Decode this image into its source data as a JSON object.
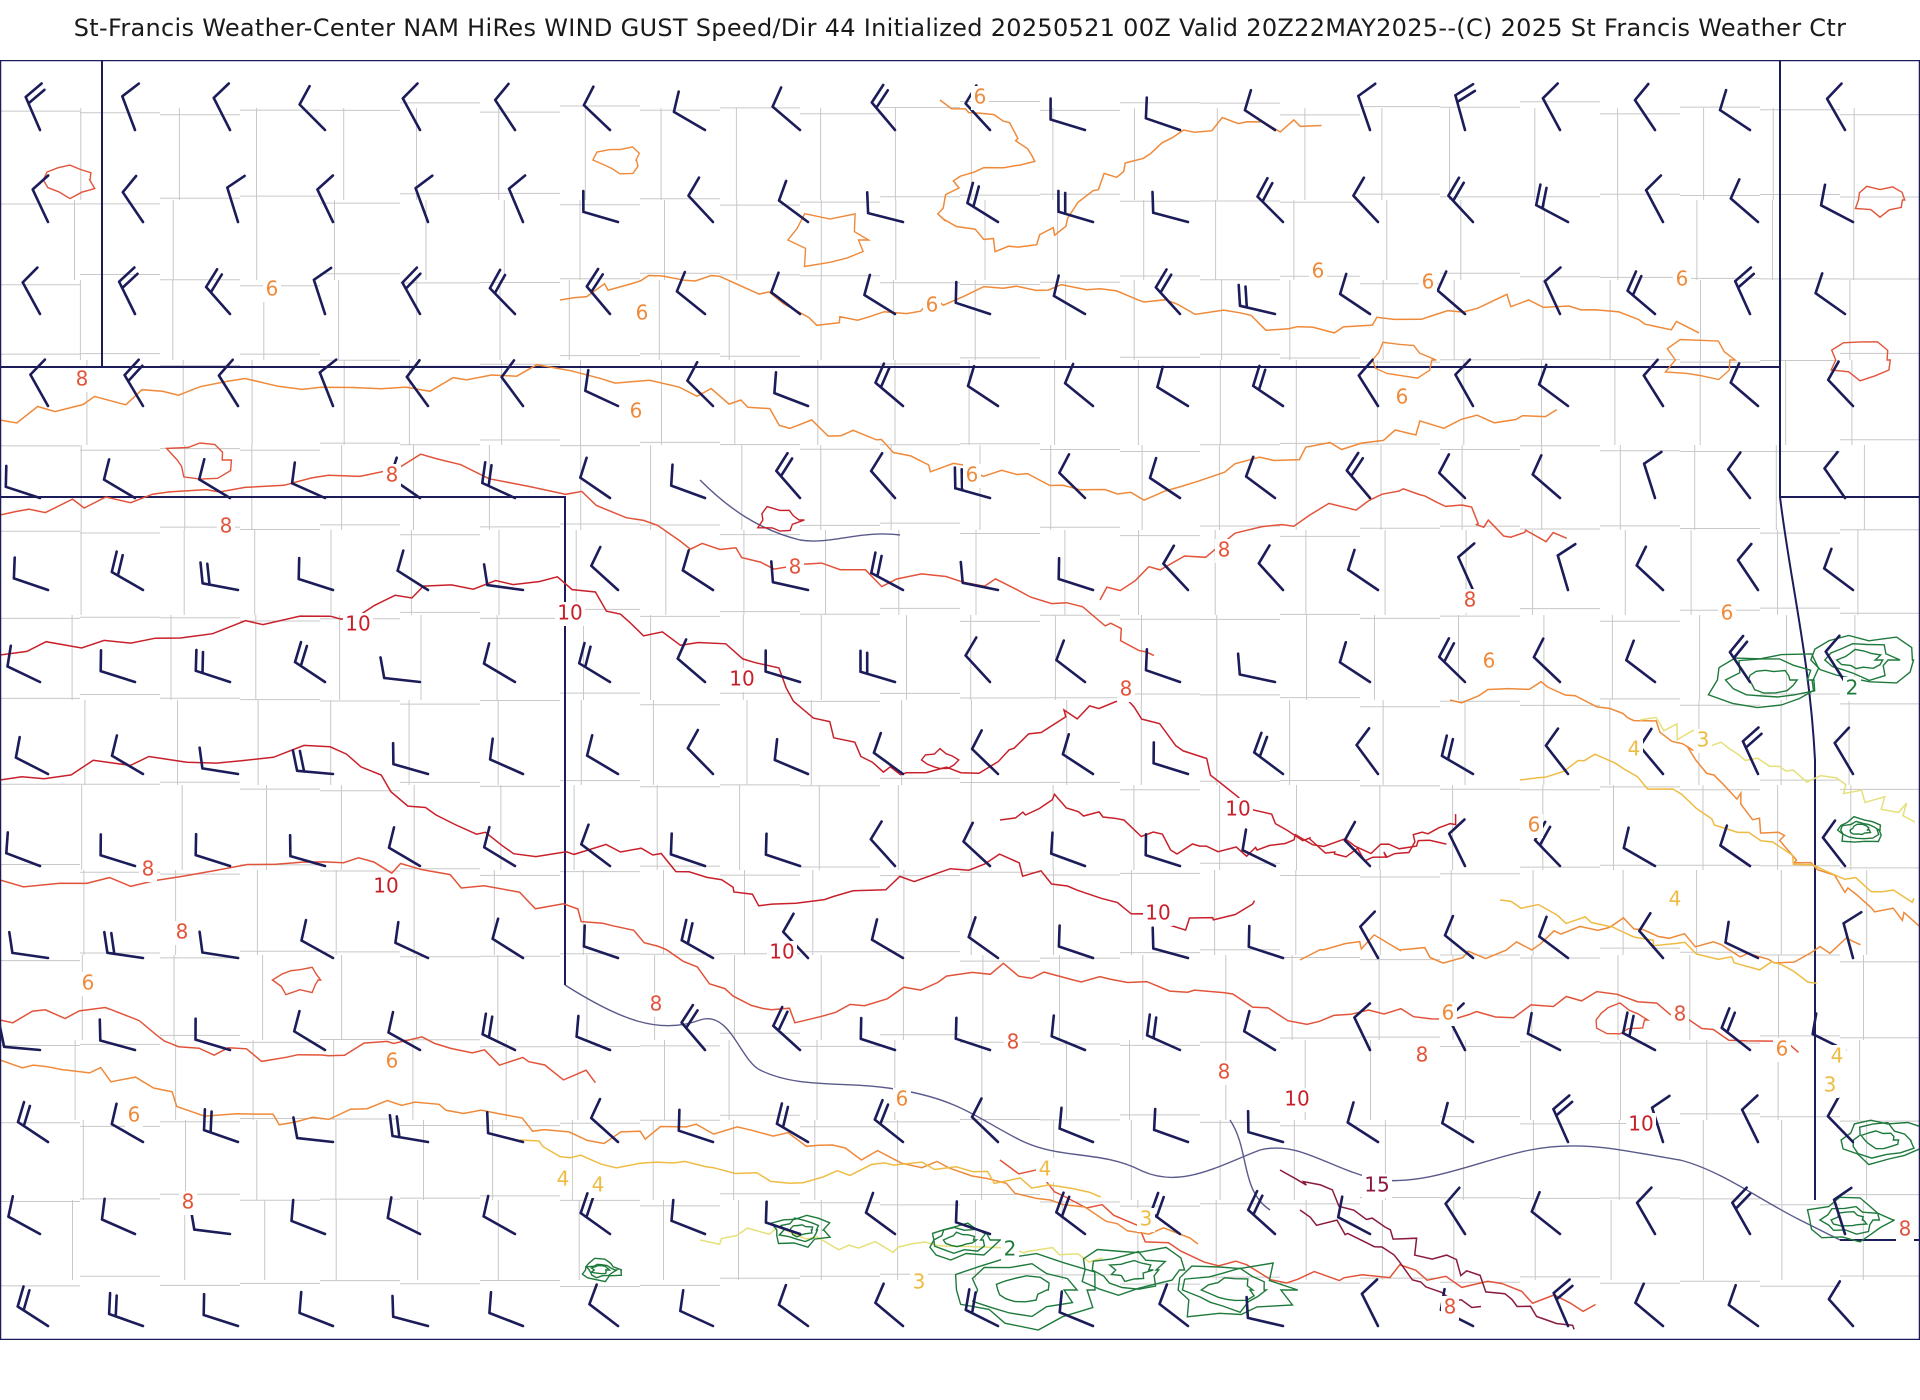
{
  "title": "St-Francis Weather-Center NAM HiRes WIND GUST Speed/Dir  44 Initialized 20250521 00Z Valid 20Z22MAY2025--(C) 2025 St Francis Weather Ctr",
  "colors": {
    "barb": "#1c1c5a",
    "border": "#1c1c5a",
    "county": "#c8c8c8",
    "river": "#5a5a8c",
    "c2": "#1e7a3c",
    "c3": "#e6e07a",
    "c4": "#eebc44",
    "c6": "#ef8a3a",
    "c8": "#e2543a",
    "c10": "#c8202a",
    "c15": "#8a1a3c"
  },
  "contour_labels": [
    {
      "text": "6"
    },
    {
      "text": "6"
    },
    {
      "text": "6"
    },
    {
      "text": "6"
    },
    {
      "text": "6"
    },
    {
      "text": "6"
    },
    {
      "text": "6"
    },
    {
      "text": "6"
    },
    {
      "text": "6"
    },
    {
      "text": "6"
    },
    {
      "text": "6"
    },
    {
      "text": "6"
    },
    {
      "text": "6"
    },
    {
      "text": "6"
    },
    {
      "text": "6"
    },
    {
      "text": "6"
    },
    {
      "text": "6"
    },
    {
      "text": "6"
    },
    {
      "text": "6"
    },
    {
      "text": "8"
    },
    {
      "text": "8"
    },
    {
      "text": "8"
    },
    {
      "text": "8"
    },
    {
      "text": "8"
    },
    {
      "text": "8"
    },
    {
      "text": "8"
    },
    {
      "text": "8"
    },
    {
      "text": "8"
    },
    {
      "text": "8"
    },
    {
      "text": "8"
    },
    {
      "text": "8"
    },
    {
      "text": "8"
    },
    {
      "text": "8"
    },
    {
      "text": "8"
    },
    {
      "text": "8"
    },
    {
      "text": "8"
    },
    {
      "text": "10"
    },
    {
      "text": "10"
    },
    {
      "text": "10"
    },
    {
      "text": "10"
    },
    {
      "text": "10"
    },
    {
      "text": "10"
    },
    {
      "text": "10"
    },
    {
      "text": "10"
    },
    {
      "text": "10"
    },
    {
      "text": "15"
    },
    {
      "text": "4"
    },
    {
      "text": "4"
    },
    {
      "text": "4"
    },
    {
      "text": "4"
    },
    {
      "text": "4"
    },
    {
      "text": "4"
    },
    {
      "text": "3"
    },
    {
      "text": "3"
    },
    {
      "text": "3"
    },
    {
      "text": "3"
    },
    {
      "text": "2"
    },
    {
      "text": "2"
    }
  ]
}
